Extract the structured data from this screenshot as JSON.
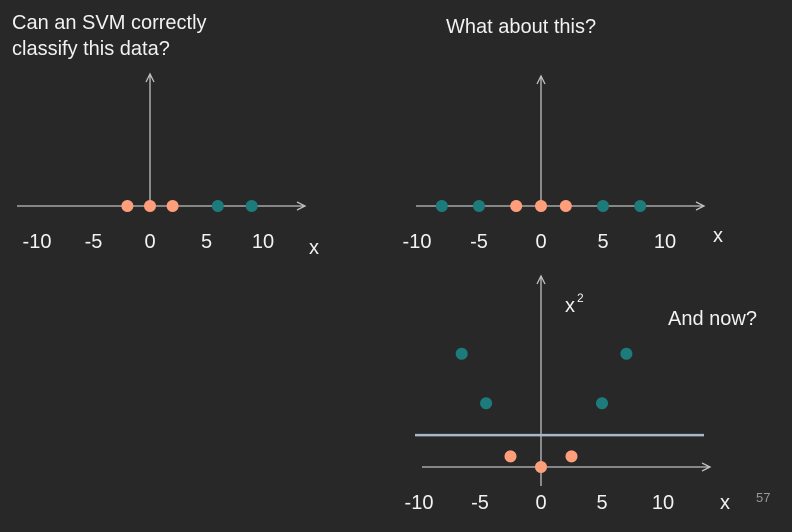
{
  "slide": {
    "question_1": "Can an SVM correctly\nclassify this data?",
    "question_2": "What about this?",
    "question_3": "And now?",
    "slide_number": "57"
  },
  "colors": {
    "background": "#282828",
    "axis": "#bfbfbf",
    "class_a": "#ff9e7a",
    "class_b": "#1e7b7b",
    "separator": "#a9b8c8"
  },
  "chart_data": [
    {
      "type": "scatter",
      "title": "",
      "xlabel": "x",
      "x_ticks": [
        "-10",
        "-5",
        "0",
        "5",
        "10"
      ],
      "series": [
        {
          "class": "class_a",
          "x": [
            -2,
            0,
            2
          ]
        },
        {
          "class": "class_b",
          "x": [
            6,
            9
          ]
        }
      ]
    },
    {
      "type": "scatter",
      "title": "",
      "xlabel": "x",
      "x_ticks": [
        "-10",
        "-5",
        "0",
        "5",
        "10"
      ],
      "series": [
        {
          "class": "class_b",
          "x": [
            -8,
            -5,
            5,
            8
          ]
        },
        {
          "class": "class_a",
          "x": [
            -2,
            0,
            2
          ]
        }
      ]
    },
    {
      "type": "scatter",
      "title": "",
      "xlabel": "x",
      "ylabel": "x",
      "ylabel_superscript": "2",
      "x_ticks": [
        "-10",
        "-5",
        "0",
        "5",
        "10"
      ],
      "series": [
        {
          "class": "class_b",
          "points": [
            [
              -6.5,
              64
            ],
            [
              -4.5,
              36
            ],
            [
              5,
              36
            ],
            [
              7,
              64
            ]
          ]
        },
        {
          "class": "class_a",
          "points": [
            [
              -2.5,
              6
            ],
            [
              0,
              0
            ],
            [
              2.5,
              6
            ]
          ]
        }
      ],
      "separator_y": 18
    }
  ]
}
